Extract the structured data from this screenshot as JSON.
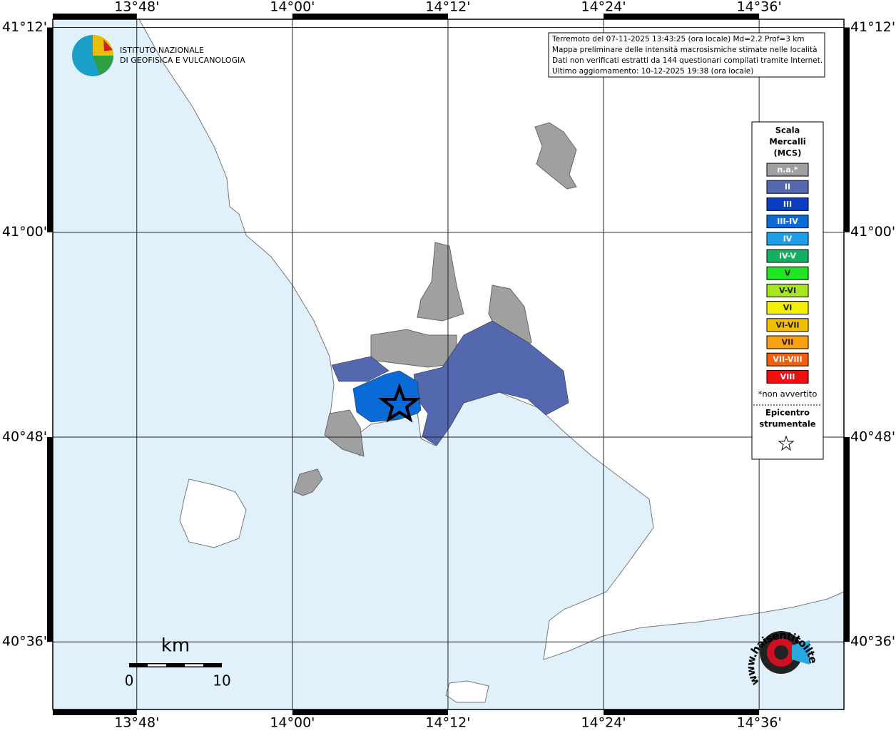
{
  "chart_data": {
    "type": "map",
    "xlim": [
      13.692,
      14.709
    ],
    "ylim": [
      40.534,
      41.208
    ],
    "xticks": [
      {
        "value": 13.8,
        "label": "13°48'"
      },
      {
        "value": 14.0,
        "label": "14°00'"
      },
      {
        "value": 14.2,
        "label": "14°12'"
      },
      {
        "value": 14.4,
        "label": "14°24'"
      },
      {
        "value": 14.6,
        "label": "14°36'"
      }
    ],
    "yticks": [
      {
        "value": 41.2,
        "label": "41°12'"
      },
      {
        "value": 41.0,
        "label": "41°00'"
      },
      {
        "value": 40.8,
        "label": "40°48'"
      },
      {
        "value": 40.6,
        "label": "40°36'"
      }
    ],
    "grid": true,
    "institute": [
      "ISTITUTO NAZIONALE",
      "DI GEOFISICA E VULCANOLOGIA"
    ],
    "info": [
      "Terremoto del 07-11-2025 13:43:25 (ora locale) Md=2.2 Prof=3 km",
      "Mappa preliminare delle intensità macrosismiche stimate nelle località",
      "Dati non verificati estratti da 144 questionari compilati tramite Internet.",
      "Ultimo aggiornamento: 10-12-2025 19:38 (ora locale)"
    ],
    "legend": {
      "title": [
        "Scala",
        "Mercalli",
        "(MCS)"
      ],
      "items": [
        {
          "label": "n.a.*",
          "color": "#a0a0a0"
        },
        {
          "label": "II",
          "color": "#5468b0"
        },
        {
          "label": "III",
          "color": "#0a3ebe"
        },
        {
          "label": "III-IV",
          "color": "#0a6ad8"
        },
        {
          "label": "IV",
          "color": "#1e9ee6"
        },
        {
          "label": "IV-V",
          "color": "#12b060"
        },
        {
          "label": "V",
          "color": "#22e622"
        },
        {
          "label": "V-VI",
          "color": "#a6e61e"
        },
        {
          "label": "VI",
          "color": "#f2f000"
        },
        {
          "label": "VI-VII",
          "color": "#f2c000"
        },
        {
          "label": "VII",
          "color": "#f8a010"
        },
        {
          "label": "VII-VIII",
          "color": "#f06010"
        },
        {
          "label": "VIII",
          "color": "#f01010"
        }
      ],
      "note": "*non avvertito",
      "epicenter": [
        "Epicentro",
        "strumentale"
      ]
    },
    "scale": {
      "unit": "km",
      "ticks": [
        0,
        10
      ]
    },
    "site": "www.haisentitoilterremoto.it"
  }
}
